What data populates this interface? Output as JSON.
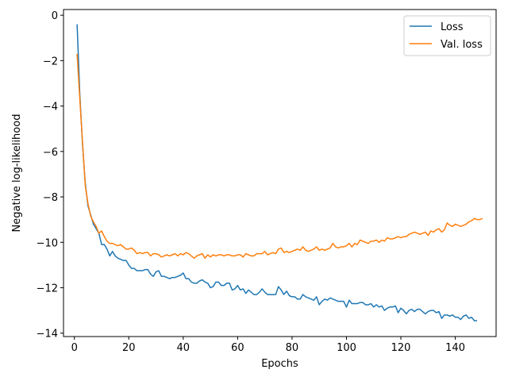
{
  "chart_data": {
    "type": "line",
    "xlabel": "Epochs",
    "ylabel": "Negative log-likelihood",
    "xlim": [
      -4,
      155
    ],
    "ylim": [
      -14.15,
      0.25
    ],
    "xticks": [
      0,
      20,
      40,
      60,
      80,
      100,
      120,
      140
    ],
    "yticks": [
      0,
      -2,
      -4,
      -6,
      -8,
      -10,
      -12,
      -14
    ],
    "grid": false,
    "legend_position": "top-right",
    "x_start": 1,
    "series": [
      {
        "name": "Loss",
        "color": "#1f77b4",
        "values": [
          -0.4,
          -3.5,
          -5.7,
          -7.4,
          -8.4,
          -8.8,
          -9.2,
          -9.4,
          -9.6,
          -10.1,
          -10.1,
          -10.3,
          -10.6,
          -10.4,
          -10.6,
          -10.7,
          -10.75,
          -10.8,
          -10.8,
          -11.0,
          -11.15,
          -11.15,
          -11.25,
          -11.25,
          -11.25,
          -11.2,
          -11.2,
          -11.4,
          -11.5,
          -11.3,
          -11.25,
          -11.5,
          -11.5,
          -11.55,
          -11.6,
          -11.55,
          -11.55,
          -11.5,
          -11.45,
          -11.35,
          -11.6,
          -11.6,
          -11.75,
          -11.8,
          -11.8,
          -11.7,
          -11.65,
          -11.75,
          -11.8,
          -12.0,
          -11.95,
          -11.75,
          -11.75,
          -11.9,
          -11.9,
          -11.8,
          -11.8,
          -12.1,
          -12.05,
          -11.9,
          -12.1,
          -12.05,
          -12.25,
          -12.1,
          -12.2,
          -12.3,
          -12.3,
          -12.2,
          -12.05,
          -12.2,
          -12.3,
          -12.3,
          -12.3,
          -12.3,
          -11.95,
          -12.1,
          -12.3,
          -12.15,
          -12.35,
          -12.4,
          -12.4,
          -12.5,
          -12.5,
          -12.3,
          -12.4,
          -12.45,
          -12.5,
          -12.55,
          -12.4,
          -12.75,
          -12.6,
          -12.5,
          -12.55,
          -12.45,
          -12.5,
          -12.55,
          -12.6,
          -12.6,
          -12.6,
          -12.85,
          -12.55,
          -12.7,
          -12.7,
          -12.7,
          -12.65,
          -12.65,
          -12.75,
          -12.75,
          -12.7,
          -12.85,
          -12.75,
          -12.85,
          -12.8,
          -13.0,
          -12.9,
          -12.85,
          -12.85,
          -12.8,
          -13.1,
          -12.9,
          -13.0,
          -13.15,
          -13.0,
          -12.95,
          -13.05,
          -12.95,
          -12.95,
          -13.05,
          -13.15,
          -13.05,
          -13.0,
          -13.0,
          -13.1,
          -13.05,
          -13.35,
          -13.2,
          -13.2,
          -13.25,
          -13.2,
          -13.3,
          -13.3,
          -13.4,
          -13.25,
          -13.2,
          -13.35,
          -13.3,
          -13.45,
          -13.45
        ]
      },
      {
        "name": "Val. loss",
        "color": "#ff7f0e",
        "values": [
          -1.7,
          -3.7,
          -5.6,
          -7.5,
          -8.3,
          -8.85,
          -9.1,
          -9.3,
          -9.6,
          -9.5,
          -9.75,
          -9.95,
          -10.05,
          -10.05,
          -10.1,
          -10.15,
          -10.1,
          -10.2,
          -10.3,
          -10.3,
          -10.25,
          -10.35,
          -10.5,
          -10.45,
          -10.5,
          -10.45,
          -10.45,
          -10.6,
          -10.5,
          -10.5,
          -10.55,
          -10.65,
          -10.6,
          -10.55,
          -10.6,
          -10.55,
          -10.5,
          -10.6,
          -10.5,
          -10.55,
          -10.45,
          -10.5,
          -10.6,
          -10.7,
          -10.6,
          -10.55,
          -10.5,
          -10.7,
          -10.55,
          -10.65,
          -10.55,
          -10.6,
          -10.55,
          -10.55,
          -10.6,
          -10.55,
          -10.55,
          -10.6,
          -10.6,
          -10.55,
          -10.55,
          -10.65,
          -10.5,
          -10.55,
          -10.6,
          -10.6,
          -10.5,
          -10.5,
          -10.5,
          -10.4,
          -10.55,
          -10.5,
          -10.45,
          -10.5,
          -10.3,
          -10.25,
          -10.45,
          -10.4,
          -10.45,
          -10.4,
          -10.35,
          -10.3,
          -10.35,
          -10.2,
          -10.35,
          -10.4,
          -10.35,
          -10.3,
          -10.2,
          -10.35,
          -10.3,
          -10.35,
          -10.3,
          -10.25,
          -10.05,
          -10.2,
          -10.25,
          -10.2,
          -10.2,
          -10.15,
          -10.05,
          -10.2,
          -10.05,
          -10.1,
          -9.9,
          -9.95,
          -10.0,
          -10.05,
          -9.95,
          -9.95,
          -9.9,
          -10.0,
          -9.9,
          -9.95,
          -9.8,
          -9.85,
          -9.85,
          -9.8,
          -9.75,
          -9.8,
          -9.75,
          -9.75,
          -9.65,
          -9.6,
          -9.55,
          -9.6,
          -9.65,
          -9.6,
          -9.55,
          -9.7,
          -9.5,
          -9.55,
          -9.45,
          -9.4,
          -9.55,
          -9.45,
          -9.15,
          -9.25,
          -9.3,
          -9.2,
          -9.25,
          -9.3,
          -9.25,
          -9.2,
          -9.1,
          -9.05,
          -8.95,
          -9.0,
          -9.0,
          -8.95
        ]
      }
    ]
  }
}
